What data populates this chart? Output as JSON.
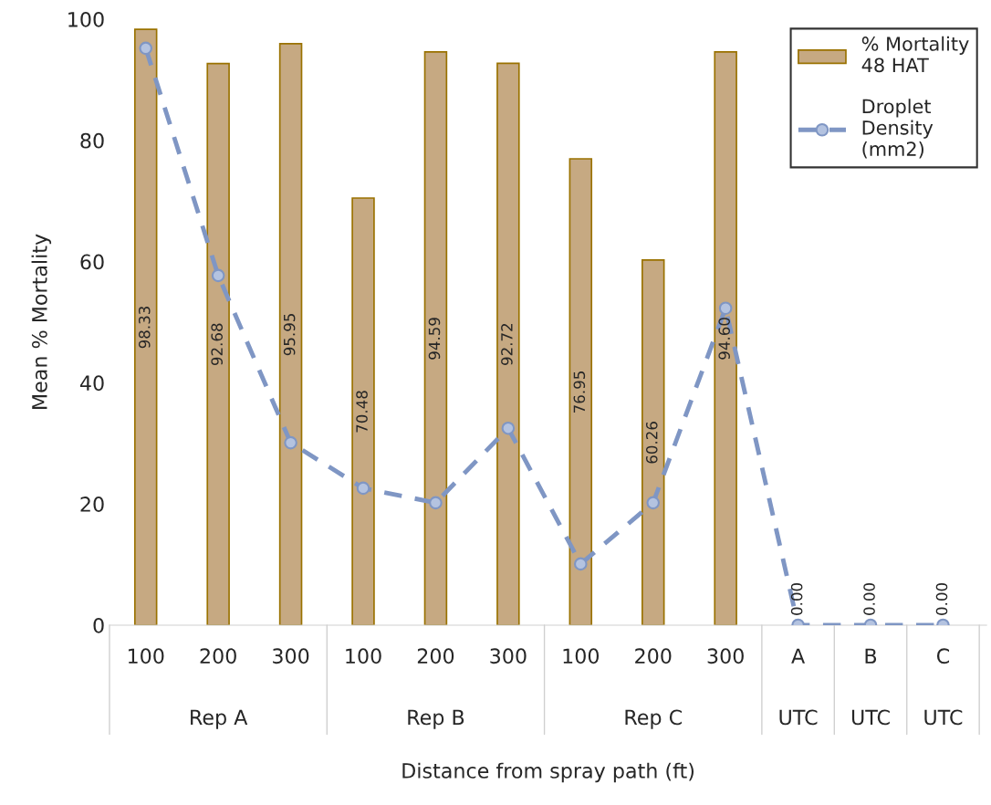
{
  "chart_data": {
    "type": "bar",
    "xlabel": "Distance from spray path (ft)",
    "ylabel": "Mean % Mortality",
    "categories": [
      "100",
      "200",
      "300",
      "100",
      "200",
      "300",
      "100",
      "200",
      "300",
      "A",
      "B",
      "C"
    ],
    "annotations": [
      "Rep A",
      "Rep B",
      "Rep C",
      "UTC",
      "UTC",
      "UTC"
    ],
    "series": [
      {
        "name": "% Mortality\n48 HAT",
        "color": "#c6a982",
        "values": [
          98.33,
          92.68,
          95.95,
          70.48,
          94.59,
          92.72,
          76.95,
          60.26,
          94.6,
          0,
          0,
          0
        ],
        "value_labels": [
          "98.33",
          "92.68",
          "95.95",
          "70.48",
          "94.59",
          "92.72",
          "76.95",
          "60.26",
          "94.60",
          "0.00",
          "0.00",
          "0.00"
        ]
      },
      {
        "name": "Droplet\nDensity\n(mm2)",
        "type": "line",
        "color": "#7f96c4",
        "marker": "circle",
        "line_style": "dashed",
        "values": [
          95.2,
          57.7,
          30.1,
          22.6,
          20.2,
          32.5,
          10.1,
          20.2,
          52.3,
          0,
          0,
          0
        ]
      }
    ],
    "ylim": [
      0,
      100
    ],
    "yticks": [
      0,
      20,
      40,
      60,
      80,
      100
    ],
    "grid": false,
    "legend": "top right"
  }
}
